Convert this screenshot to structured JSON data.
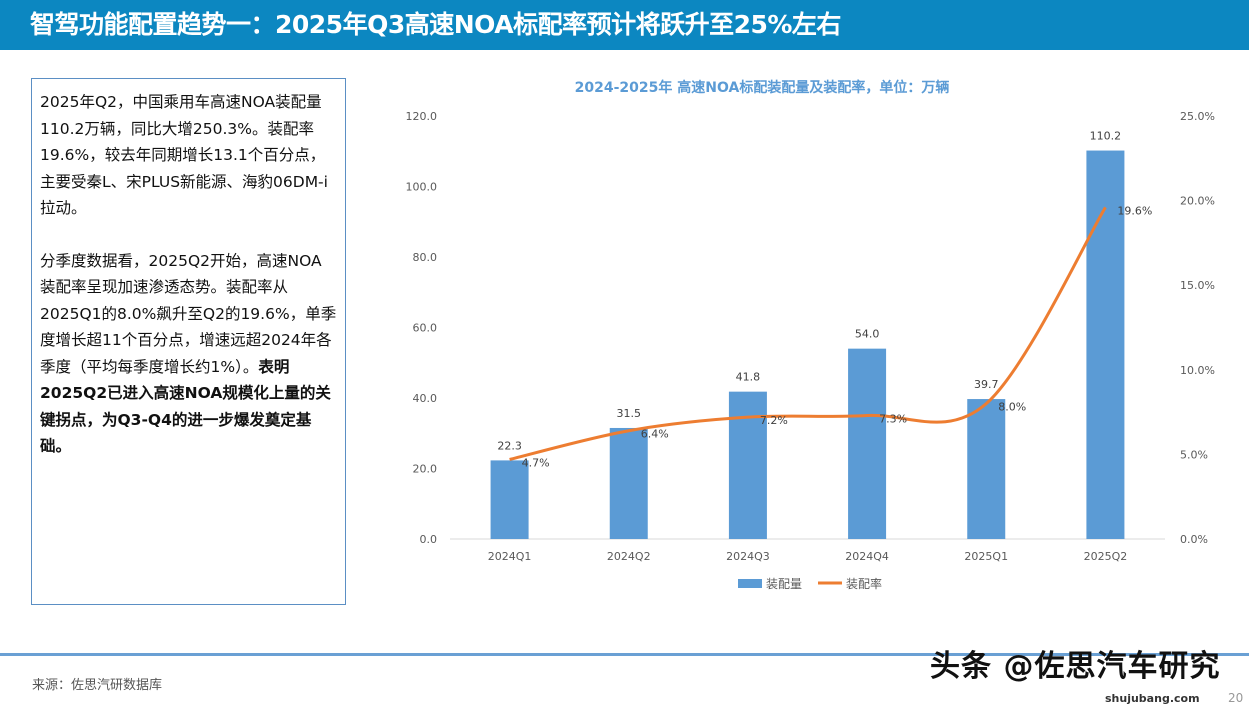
{
  "header": {
    "title": "智驾功能配置趋势一：2025年Q3高速NOA标配率预计将跃升至25%左右"
  },
  "text": {
    "p1": "2025年Q2，中国乘用车高速NOA装配量110.2万辆，同比大增250.3%。装配率19.6%，较去年同期增长13.1个百分点，主要受秦L、宋PLUS新能源、海豹06DM-i拉动。",
    "p2a": "分季度数据看，2025Q2开始，高速NOA装配率呈现加速渗透态势。装配率从2025Q1的8.0%飙升至Q2的19.6%，单季度增长超11个百分点，增速远超2024年各季度（平均每季度增长约1%）。",
    "p2b": "表明2025Q2已进入高速NOA规模化上量的关键拐点，为Q3-Q4的进一步爆发奠定基础。"
  },
  "footer": {
    "source": "来源：佐思汽研数据库",
    "watermark": "头条 @佐思汽车研究",
    "site": "shujubang.com",
    "page": "20"
  },
  "chart_data": {
    "type": "bar+line",
    "title": "2024-2025年 高速NOA标配装配量及装配率，单位：万辆",
    "categories": [
      "2024Q1",
      "2024Q2",
      "2024Q3",
      "2024Q4",
      "2025Q1",
      "2025Q2"
    ],
    "series": [
      {
        "name": "装配量",
        "type": "bar",
        "axis": "left",
        "color": "#5b9bd5",
        "values": [
          22.3,
          31.5,
          41.8,
          54.0,
          39.7,
          110.2
        ],
        "labels": [
          "22.3",
          "31.5",
          "41.8",
          "54.0",
          "39.7",
          "110.2"
        ]
      },
      {
        "name": "装配率",
        "type": "line",
        "axis": "right",
        "color": "#ed7d31",
        "values": [
          4.7,
          6.4,
          7.2,
          7.3,
          8.0,
          19.6
        ],
        "labels": [
          "4.7%",
          "6.4%",
          "7.2%",
          "7.3%",
          "8.0%",
          "19.6%"
        ]
      }
    ],
    "yleft": {
      "lim": [
        0,
        120
      ],
      "ticks": [
        "0.0",
        "20.0",
        "40.0",
        "60.0",
        "80.0",
        "100.0",
        "120.0"
      ]
    },
    "yright": {
      "lim": [
        0,
        25
      ],
      "ticks": [
        "0.0%",
        "5.0%",
        "10.0%",
        "15.0%",
        "20.0%",
        "25.0%"
      ]
    },
    "legend": "bottom",
    "grid": false
  }
}
